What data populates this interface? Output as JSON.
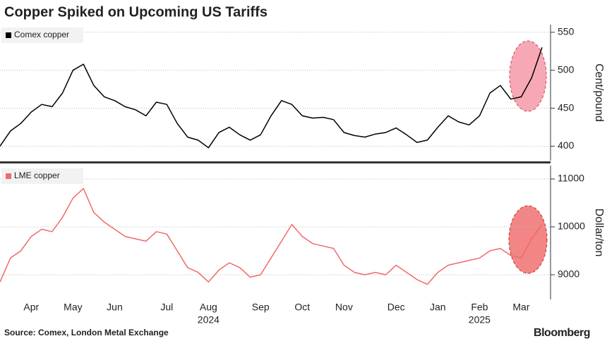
{
  "title": "Copper Spiked on Upcoming US Tariffs",
  "source": "Source: Comex, London Metal Exchange",
  "brand": "Bloomberg",
  "chart_data": [
    {
      "type": "line",
      "series": [
        {
          "name": "Comex copper",
          "color": "#000000",
          "values": [
            400,
            420,
            430,
            445,
            455,
            452,
            470,
            500,
            508,
            480,
            465,
            460,
            452,
            448,
            440,
            458,
            455,
            430,
            412,
            408,
            398,
            418,
            425,
            415,
            408,
            415,
            440,
            460,
            455,
            440,
            437,
            438,
            435,
            418,
            414,
            412,
            416,
            418,
            424,
            415,
            405,
            408,
            425,
            440,
            432,
            428,
            440,
            470,
            480,
            462,
            465,
            490,
            530
          ]
        }
      ],
      "ylabel": "Cent/pound",
      "ylim": [
        381,
        560
      ],
      "yticks": [
        400,
        450,
        500,
        550
      ],
      "grid": true
    },
    {
      "type": "line",
      "series": [
        {
          "name": "LME copper",
          "color": "#f06a6a",
          "values": [
            8850,
            9350,
            9500,
            9800,
            9950,
            9900,
            10200,
            10600,
            10800,
            10300,
            10100,
            9950,
            9800,
            9750,
            9700,
            9900,
            9850,
            9500,
            9150,
            9050,
            8850,
            9100,
            9250,
            9150,
            8950,
            9000,
            9350,
            9700,
            10050,
            9800,
            9650,
            9600,
            9550,
            9200,
            9050,
            9000,
            9050,
            9000,
            9200,
            9050,
            8900,
            8800,
            9050,
            9200,
            9250,
            9300,
            9350,
            9500,
            9550,
            9400,
            9350,
            9750,
            10050
          ]
        }
      ],
      "ylabel": "Dollar/ton",
      "ylim": [
        8485,
        11280
      ],
      "yticks": [
        9000,
        10000,
        11000
      ],
      "grid": true,
      "categories": [
        null,
        null,
        null,
        "Apr",
        null,
        null,
        null,
        "May",
        null,
        null,
        null,
        "Jun",
        null,
        null,
        null,
        null,
        "Jul",
        null,
        null,
        null,
        "Aug",
        null,
        null,
        null,
        null,
        "Sep",
        null,
        null,
        null,
        "Oct",
        null,
        null,
        null,
        "Nov",
        null,
        null,
        null,
        null,
        "Dec",
        null,
        null,
        null,
        "Jan",
        null,
        null,
        null,
        "Feb",
        null,
        null,
        null,
        "Mar",
        null,
        null
      ],
      "years": [
        null,
        null,
        null,
        null,
        null,
        null,
        null,
        null,
        null,
        null,
        null,
        null,
        null,
        null,
        null,
        null,
        null,
        null,
        null,
        null,
        "2024",
        null,
        null,
        null,
        null,
        null,
        null,
        null,
        null,
        null,
        null,
        null,
        null,
        null,
        null,
        null,
        null,
        null,
        null,
        null,
        null,
        null,
        null,
        null,
        null,
        null,
        "2025",
        null,
        null,
        null,
        null,
        null,
        null
      ]
    }
  ]
}
